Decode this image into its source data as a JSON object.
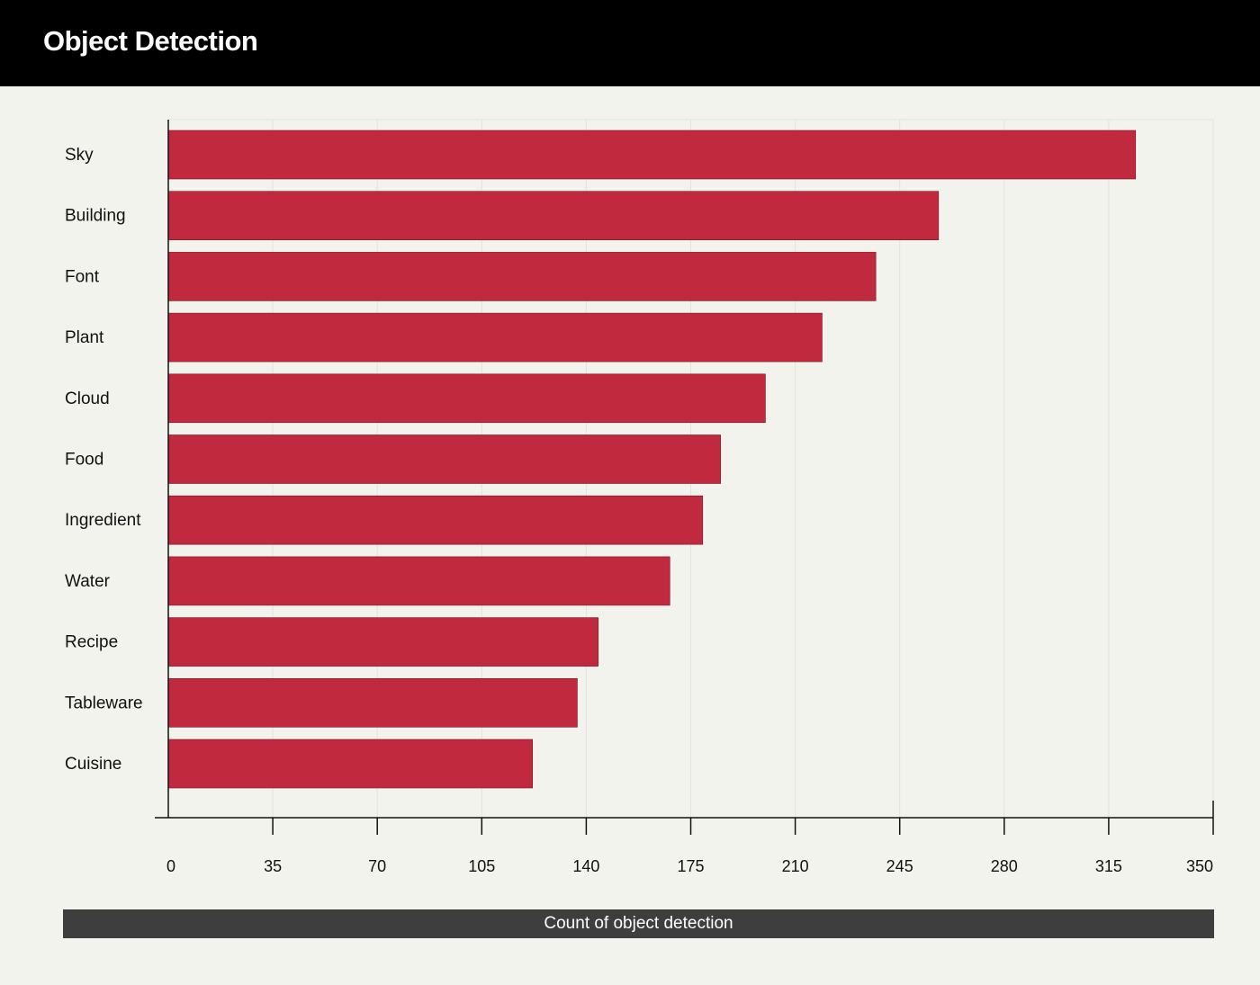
{
  "header": {
    "title": "Object Detection"
  },
  "colors": {
    "bar": "#c0293e",
    "background": "#f3f3ee",
    "gridline": "#e3e3de",
    "axis": "#111111",
    "header_bg": "#000000",
    "xlabel_bg": "#3e3e3e"
  },
  "chart_data": {
    "type": "bar",
    "orientation": "horizontal",
    "title": "Object Detection",
    "xlabel": "Count of object detection",
    "ylabel": "",
    "categories": [
      "Sky",
      "Building",
      "Font",
      "Plant",
      "Cloud",
      "Food",
      "Ingredient",
      "Water",
      "Recipe",
      "Tableware",
      "Cuisine"
    ],
    "values": [
      324,
      258,
      237,
      219,
      200,
      185,
      179,
      168,
      144,
      137,
      122
    ],
    "xlim": [
      0,
      350
    ],
    "xticks": [
      0,
      35,
      70,
      105,
      140,
      175,
      210,
      245,
      280,
      315,
      350
    ],
    "grid": true,
    "legend": "none"
  }
}
